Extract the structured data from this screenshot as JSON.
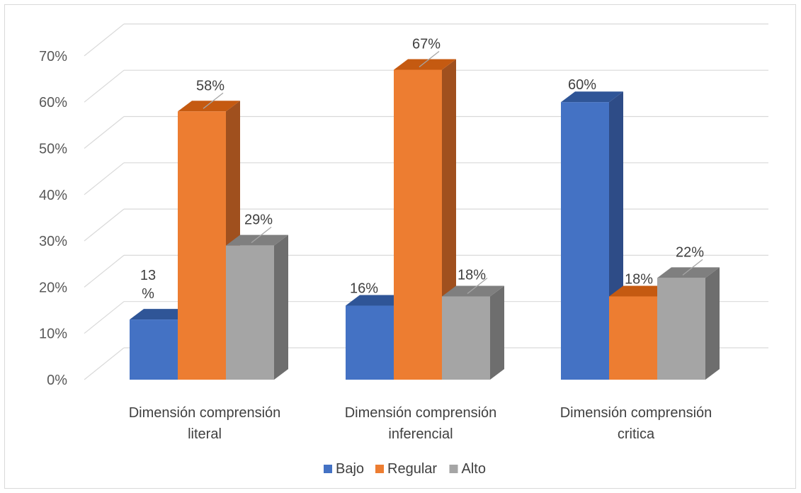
{
  "chart_data": {
    "type": "bar",
    "categories": [
      [
        "Dimensión comprensión",
        "literal"
      ],
      [
        "Dimensión comprensión",
        "inferencial"
      ],
      [
        "Dimensión comprensión",
        "critica"
      ]
    ],
    "series": [
      {
        "name": "Bajo",
        "values": [
          13,
          16,
          60
        ],
        "labels": [
          [
            "13",
            "%"
          ],
          [
            "16%"
          ],
          [
            "60%"
          ]
        ],
        "color": "#4472C4",
        "top": "#2F5597",
        "side": "#2E4C87"
      },
      {
        "name": "Regular",
        "values": [
          58,
          67,
          18
        ],
        "labels": [
          [
            "58%"
          ],
          [
            "67%"
          ],
          [
            "18%"
          ]
        ],
        "color": "#ED7D31",
        "top": "#C55A11",
        "side": "#A0501E"
      },
      {
        "name": "Alto",
        "values": [
          29,
          18,
          22
        ],
        "labels": [
          [
            "29%"
          ],
          [
            "18%"
          ],
          [
            "22%"
          ]
        ],
        "color": "#A5A5A5",
        "top": "#7F7F7F",
        "side": "#6E6E6E"
      }
    ],
    "ylim": [
      0,
      70
    ],
    "yticks": [
      "0%",
      "10%",
      "20%",
      "30%",
      "40%",
      "50%",
      "60%",
      "70%"
    ],
    "grid": true,
    "legend": "bottom",
    "title": "",
    "xlabel": "",
    "ylabel": ""
  }
}
